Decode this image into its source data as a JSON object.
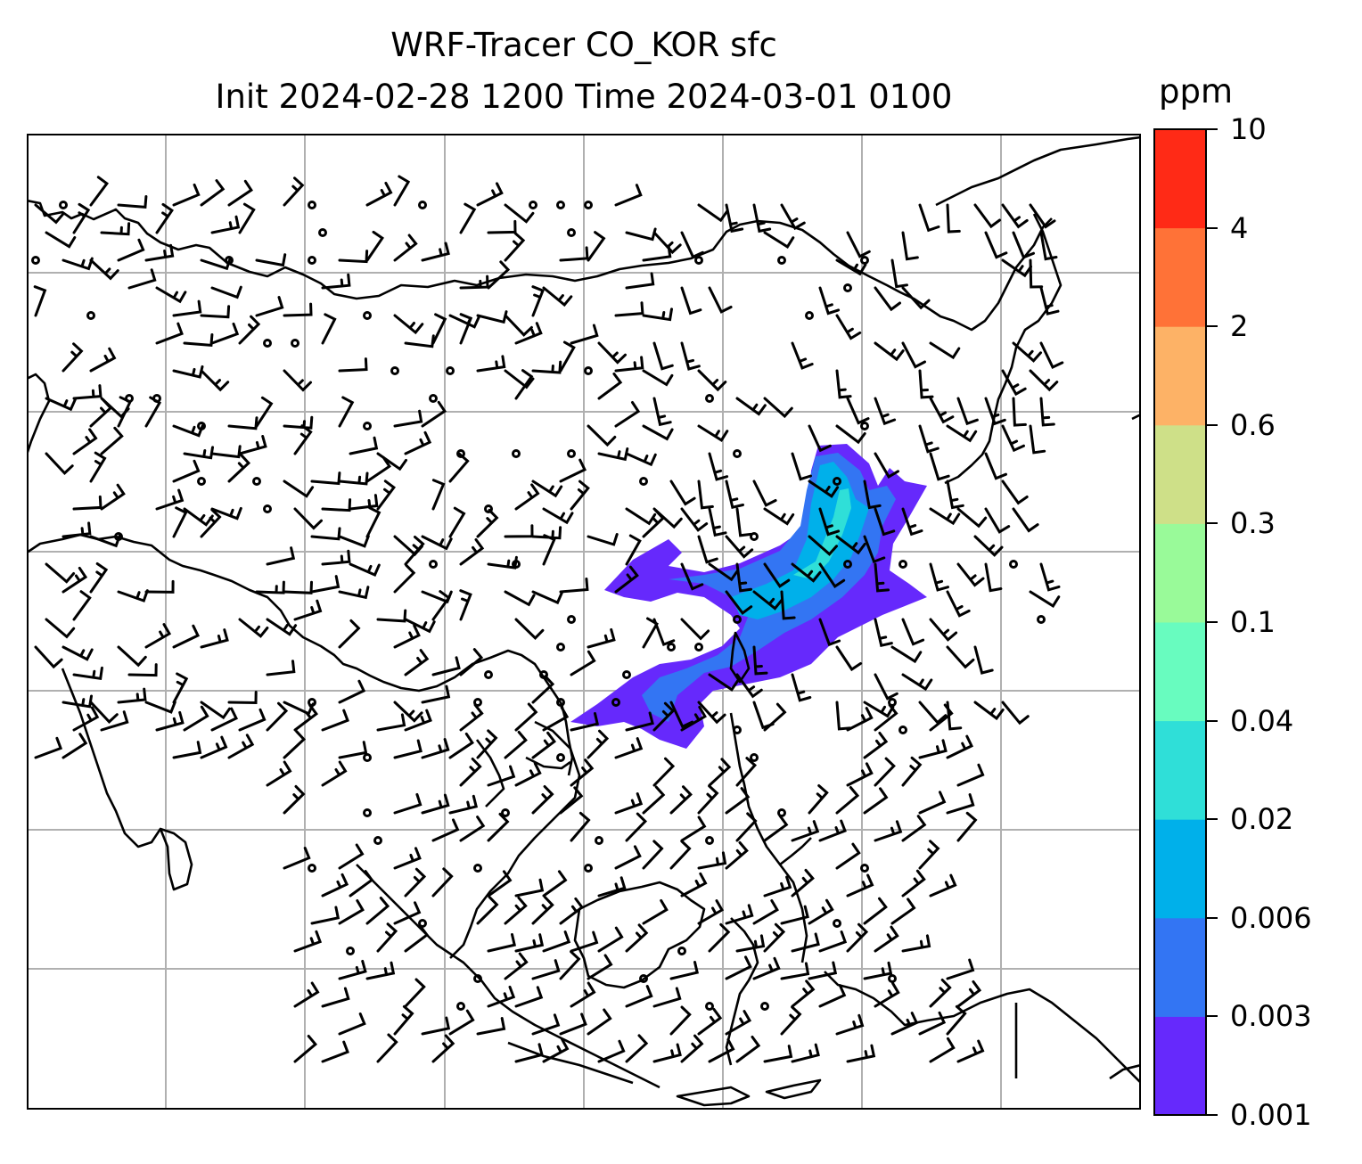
{
  "title": {
    "line1": "WRF-Tracer CO_KOR sfc",
    "line2": "Init 2024-02-28 1200 Time 2024-03-01 0100"
  },
  "colorbar": {
    "unit": "ppm",
    "levels": [
      "0.001",
      "0.003",
      "0.006",
      "0.02",
      "0.04",
      "0.1",
      "0.3",
      "0.6",
      "2",
      "4",
      "10"
    ],
    "colors": [
      "#6629fc",
      "#3375f3",
      "#00b0ea",
      "#2fdfd8",
      "#68fcbf",
      "#99fa99",
      "#cee088",
      "#fdb266",
      "#ff7237",
      "#ff2a16"
    ]
  },
  "map": {
    "projection": "Lambert",
    "gridlines": true,
    "coastlines": true,
    "wind_barbs": true,
    "calm_marker": "circle"
  }
}
